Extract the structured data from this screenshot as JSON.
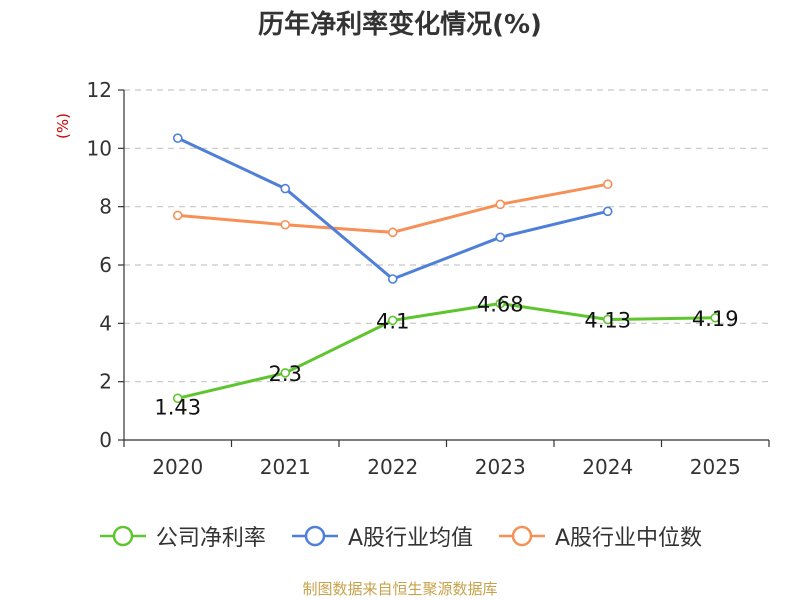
{
  "chart_data": {
    "type": "line",
    "title": "历年净利率变化情况(%)",
    "ylabel": "(%)",
    "xlabel": "",
    "categories": [
      "2020",
      "2021",
      "2022",
      "2023",
      "2024",
      "2025"
    ],
    "ylim": [
      0,
      12
    ],
    "yticks": [
      0,
      2,
      4,
      6,
      8,
      10,
      12
    ],
    "grid": "horizontal-dashed",
    "legend_position": "bottom",
    "series": [
      {
        "name": "公司净利率",
        "color": "#5fc52e",
        "values": [
          1.43,
          2.3,
          4.1,
          4.68,
          4.13,
          4.19
        ],
        "labels": [
          "1.43",
          "2.3",
          "4.1",
          "4.68",
          "4.13",
          "4.19"
        ]
      },
      {
        "name": "A股行业均值",
        "color": "#4f7fd9",
        "values": [
          10.35,
          8.62,
          5.52,
          6.95,
          7.84,
          null
        ]
      },
      {
        "name": "A股行业中位数",
        "color": "#f79057",
        "values": [
          7.7,
          7.38,
          7.12,
          8.08,
          8.77,
          null
        ]
      }
    ]
  },
  "source": "制图数据来自恒生聚源数据库"
}
